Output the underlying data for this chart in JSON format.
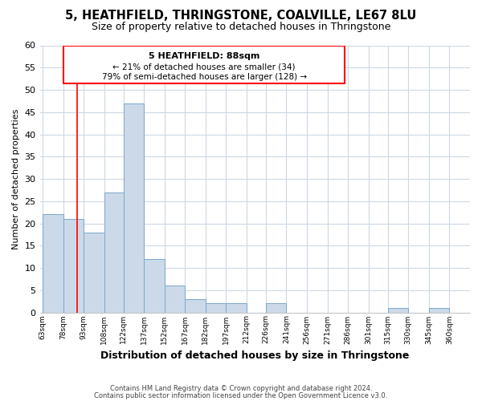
{
  "title": "5, HEATHFIELD, THRINGSTONE, COALVILLE, LE67 8LU",
  "subtitle": "Size of property relative to detached houses in Thringstone",
  "xlabel": "Distribution of detached houses by size in Thringstone",
  "ylabel": "Number of detached properties",
  "bar_color": "#ccd9e8",
  "bar_edge_color": "#7aa8cc",
  "bar_left_edges": [
    63,
    78,
    93,
    108,
    122,
    137,
    152,
    167,
    182,
    197,
    212,
    226,
    241,
    256,
    271,
    286,
    301,
    315,
    330,
    345
  ],
  "bar_widths": [
    15,
    15,
    15,
    14,
    15,
    15,
    15,
    15,
    15,
    15,
    14,
    15,
    15,
    15,
    15,
    15,
    14,
    15,
    15,
    15
  ],
  "bar_heights": [
    22,
    21,
    18,
    27,
    47,
    12,
    6,
    3,
    2,
    2,
    0,
    2,
    0,
    0,
    0,
    0,
    0,
    1,
    0,
    1
  ],
  "tick_labels": [
    "63sqm",
    "78sqm",
    "93sqm",
    "108sqm",
    "122sqm",
    "137sqm",
    "152sqm",
    "167sqm",
    "182sqm",
    "197sqm",
    "212sqm",
    "226sqm",
    "241sqm",
    "256sqm",
    "271sqm",
    "286sqm",
    "301sqm",
    "315sqm",
    "330sqm",
    "345sqm",
    "360sqm"
  ],
  "ylim": [
    0,
    60
  ],
  "yticks": [
    0,
    5,
    10,
    15,
    20,
    25,
    30,
    35,
    40,
    45,
    50,
    55,
    60
  ],
  "property_line_x": 88,
  "annotation_title": "5 HEATHFIELD: 88sqm",
  "annotation_line1": "← 21% of detached houses are smaller (34)",
  "annotation_line2": "79% of semi-detached houses are larger (128) →",
  "footer_line1": "Contains HM Land Registry data © Crown copyright and database right 2024.",
  "footer_line2": "Contains public sector information licensed under the Open Government Licence v3.0.",
  "background_color": "#ffffff",
  "grid_color": "#ccd8e4"
}
